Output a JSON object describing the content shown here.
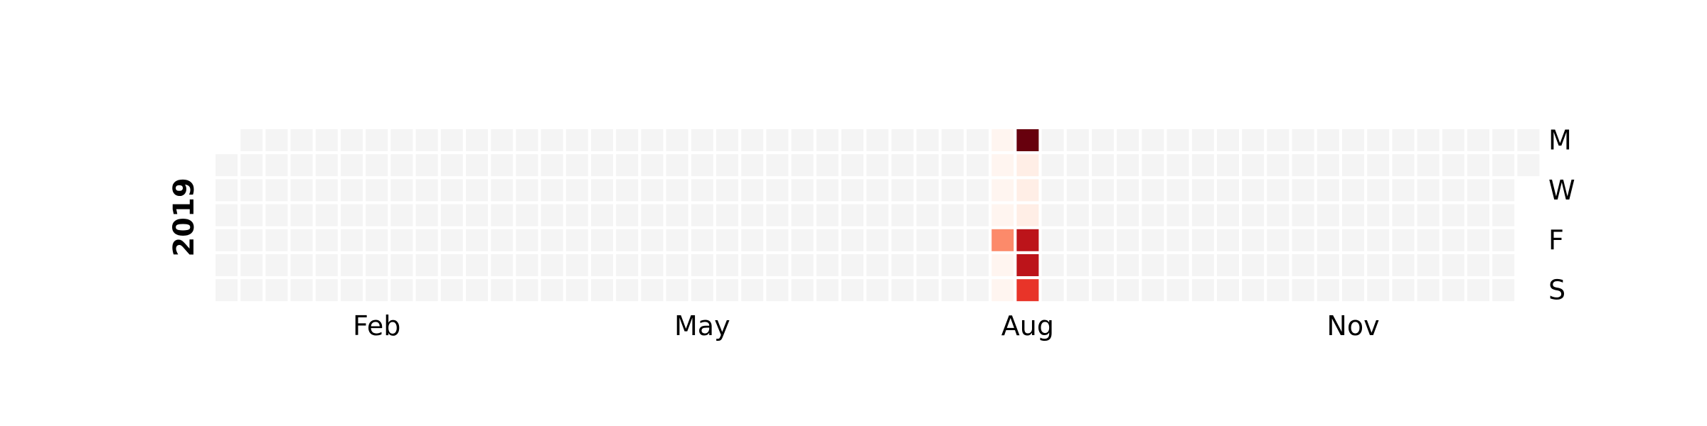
{
  "chart_data": {
    "type": "heatmap",
    "subtype": "calendar",
    "year": "2019",
    "start_date": "2019-01-01",
    "end_date": "2019-12-31",
    "weekday_labels": [
      "M",
      "",
      "W",
      "",
      "F",
      "",
      "S"
    ],
    "month_labels": [
      {
        "label": "Feb",
        "week": 6
      },
      {
        "label": "May",
        "week": 19
      },
      {
        "label": "Aug",
        "week": 32
      },
      {
        "label": "Nov",
        "week": 45
      }
    ],
    "empty_color": "#f4f4f4",
    "colormap": "Reds",
    "value_range": [
      0,
      10
    ],
    "values": [
      {
        "date": "2019-08-09",
        "value": 4
      },
      {
        "date": "2019-08-12",
        "value": 10
      },
      {
        "date": "2019-08-13",
        "value": 0.4
      },
      {
        "date": "2019-08-14",
        "value": 0.4
      },
      {
        "date": "2019-08-15",
        "value": 0.4
      },
      {
        "date": "2019-08-16",
        "value": 8
      },
      {
        "date": "2019-08-17",
        "value": 8
      },
      {
        "date": "2019-08-18",
        "value": 6.5
      }
    ],
    "zero_days": [
      "2019-08-05",
      "2019-08-06",
      "2019-08-07",
      "2019-08-08",
      "2019-08-10",
      "2019-08-11"
    ],
    "zero_color": "#fff5f0"
  }
}
